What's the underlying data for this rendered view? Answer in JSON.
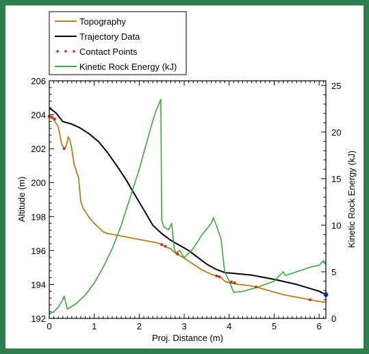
{
  "chart_data": {
    "type": "line",
    "xlabel": "Proj. Distance (m)",
    "ylabel": "Altitude (m)",
    "y2label": "Kinetic Rock Energy (kJ)",
    "xlim": [
      0,
      6.15
    ],
    "ylim": [
      192,
      206
    ],
    "y2lim": [
      0,
      25.5
    ],
    "x_ticks": [
      0,
      1,
      2,
      3,
      4,
      5,
      6
    ],
    "y_ticks": [
      192,
      194,
      196,
      198,
      200,
      202,
      204,
      206
    ],
    "y2_ticks": [
      0,
      5,
      10,
      15,
      20,
      25
    ],
    "legend_position": "top-left",
    "colors": {
      "topography": "#b07d1e",
      "trajectory": "#000000",
      "contact": "#e02020",
      "energy": "#3aa83a",
      "endpoint": "#2233dd",
      "frame": "#2e7d4f"
    },
    "series": [
      {
        "key": "topography",
        "name": "Topography",
        "axis": "left",
        "x": [
          0,
          0.1,
          0.2,
          0.28,
          0.34,
          0.38,
          0.42,
          0.46,
          0.5,
          0.55,
          0.6,
          0.65,
          0.7,
          0.75,
          0.8,
          0.85,
          0.9,
          1.0,
          1.1,
          1.2,
          1.3,
          1.4,
          1.5,
          1.6,
          1.8,
          2.0,
          2.2,
          2.4,
          2.5,
          2.6,
          2.7,
          2.8,
          2.9,
          3.0,
          3.2,
          3.4,
          3.6,
          3.8,
          3.9,
          4.0,
          4.2,
          4.4,
          4.6,
          4.8,
          5.0,
          5.2,
          5.4,
          5.6,
          5.8,
          6.0,
          6.15
        ],
        "y": [
          203.9,
          203.7,
          203.3,
          202.2,
          202.0,
          202.2,
          202.7,
          202.5,
          202.0,
          201.1,
          200.7,
          200.3,
          198.9,
          198.5,
          198.3,
          198.1,
          197.9,
          197.6,
          197.35,
          197.1,
          197.0,
          196.95,
          196.9,
          196.85,
          196.75,
          196.65,
          196.55,
          196.45,
          196.35,
          196.2,
          196.1,
          195.85,
          195.7,
          195.55,
          195.2,
          194.85,
          194.6,
          194.45,
          194.2,
          194.1,
          194.0,
          193.95,
          193.85,
          193.7,
          193.55,
          193.4,
          193.3,
          193.2,
          193.1,
          193.0,
          192.95
        ]
      },
      {
        "key": "trajectory",
        "name": "Trajectory Data",
        "axis": "left",
        "x": [
          0,
          0.15,
          0.3,
          0.5,
          0.7,
          0.9,
          1.1,
          1.3,
          1.5,
          1.7,
          1.9,
          2.1,
          2.3,
          2.5,
          2.7,
          2.9,
          3.1,
          3.3,
          3.5,
          3.7,
          3.9,
          4.1,
          4.5,
          5.0,
          5.5,
          6.0,
          6.15
        ],
        "y": [
          204.4,
          204.1,
          203.6,
          203.45,
          203.2,
          202.85,
          202.4,
          201.75,
          201.0,
          200.2,
          199.3,
          198.4,
          197.5,
          197.0,
          196.6,
          196.3,
          196.0,
          195.6,
          195.2,
          194.9,
          194.7,
          194.65,
          194.55,
          194.3,
          194.0,
          193.6,
          193.4
        ]
      },
      {
        "key": "energy",
        "name": "Kinetic Rock Energy (kJ)",
        "axis": "right",
        "x": [
          0,
          0.1,
          0.2,
          0.3,
          0.33,
          0.4,
          0.6,
          0.8,
          1.0,
          1.2,
          1.4,
          1.6,
          1.8,
          2.0,
          2.2,
          2.35,
          2.48,
          2.5,
          2.55,
          2.65,
          2.72,
          2.78,
          2.82,
          2.9,
          3.0,
          3.2,
          3.4,
          3.6,
          3.65,
          3.75,
          3.82,
          3.9,
          4.0,
          4.1,
          4.3,
          4.6,
          5.0,
          5.2,
          5.25,
          5.5,
          5.8,
          6.0,
          6.1,
          6.15
        ],
        "y": [
          0.5,
          0.7,
          1.2,
          2.0,
          2.4,
          1.0,
          1.6,
          2.5,
          3.8,
          5.5,
          7.5,
          10.0,
          13.0,
          16.0,
          19.5,
          22.0,
          23.5,
          10.5,
          9.8,
          9.5,
          10.2,
          7.5,
          7.0,
          7.3,
          6.5,
          7.5,
          9.0,
          10.2,
          10.8,
          9.5,
          8.5,
          5.0,
          4.0,
          2.8,
          2.9,
          3.3,
          4.0,
          5.0,
          4.6,
          5.0,
          5.5,
          5.7,
          6.2,
          5.7
        ]
      }
    ],
    "contact_points": {
      "key": "contact",
      "name": "Contact Points",
      "x": [
        0.0,
        0.06,
        0.12,
        0.33,
        2.5,
        2.58,
        2.85,
        3.72,
        3.78,
        4.05,
        4.12,
        4.6,
        5.8
      ],
      "y": [
        203.9,
        203.85,
        203.75,
        202.0,
        196.35,
        196.25,
        195.8,
        194.5,
        194.45,
        194.15,
        194.1,
        193.85,
        193.1
      ]
    },
    "endpoint": {
      "x": 6.15,
      "y": 193.4
    }
  }
}
